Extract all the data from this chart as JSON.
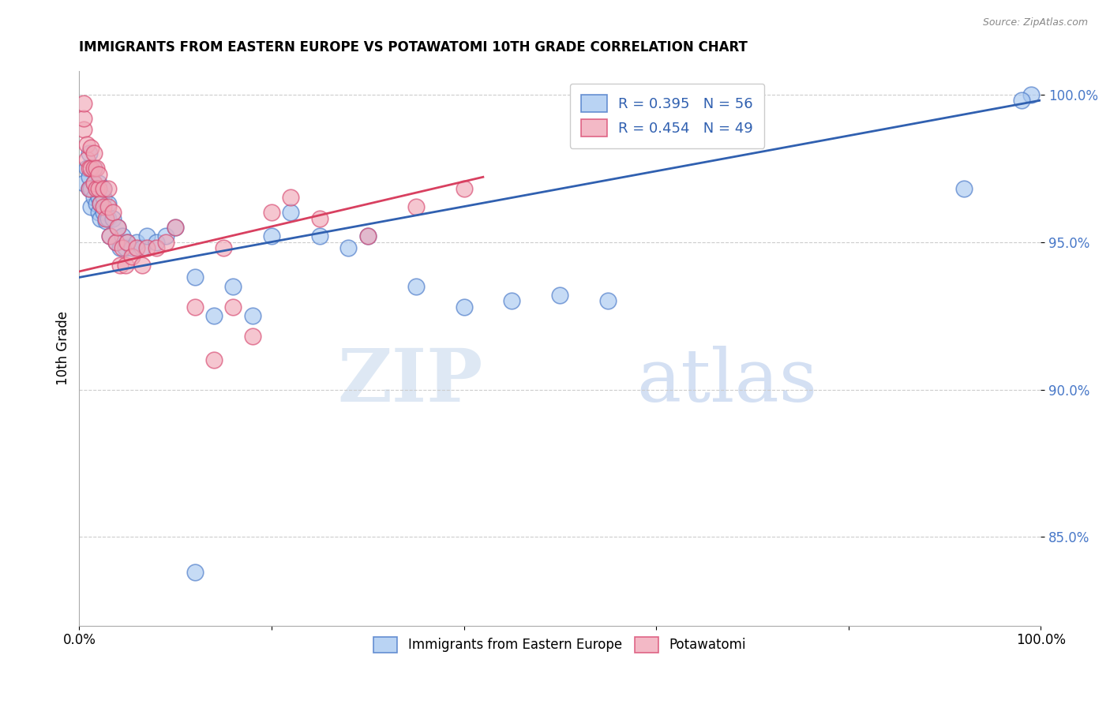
{
  "title": "IMMIGRANTS FROM EASTERN EUROPE VS POTAWATOMI 10TH GRADE CORRELATION CHART",
  "source_text": "Source: ZipAtlas.com",
  "ylabel": "10th Grade",
  "xlim": [
    0.0,
    1.0
  ],
  "ylim": [
    0.82,
    1.008
  ],
  "yticks": [
    0.85,
    0.9,
    0.95,
    1.0
  ],
  "ytick_labels": [
    "85.0%",
    "90.0%",
    "95.0%",
    "100.0%"
  ],
  "xticks": [
    0.0,
    0.2,
    0.4,
    0.6,
    0.8,
    1.0
  ],
  "xtick_labels": [
    "0.0%",
    "",
    "",
    "",
    "",
    "100.0%"
  ],
  "blue_color": "#A8C8F0",
  "pink_color": "#F0A8B8",
  "blue_edge_color": "#4878C8",
  "pink_edge_color": "#D84870",
  "blue_line_color": "#3060B0",
  "pink_line_color": "#D84060",
  "legend_text_color": "#3060B0",
  "ytick_color": "#4878C8",
  "watermark_zip": "ZIP",
  "watermark_atlas": "atlas",
  "blue_scatter_x": [
    0.005,
    0.008,
    0.01,
    0.01,
    0.01,
    0.012,
    0.012,
    0.015,
    0.015,
    0.015,
    0.018,
    0.018,
    0.02,
    0.02,
    0.02,
    0.022,
    0.022,
    0.025,
    0.025,
    0.025,
    0.028,
    0.03,
    0.03,
    0.032,
    0.035,
    0.038,
    0.04,
    0.042,
    0.045,
    0.048,
    0.05,
    0.055,
    0.06,
    0.065,
    0.07,
    0.08,
    0.09,
    0.1,
    0.12,
    0.14,
    0.16,
    0.18,
    0.2,
    0.22,
    0.25,
    0.28,
    0.3,
    0.35,
    0.4,
    0.45,
    0.5,
    0.55,
    0.12,
    0.99,
    0.98,
    0.92
  ],
  "blue_scatter_y": [
    0.97,
    0.975,
    0.968,
    0.972,
    0.98,
    0.962,
    0.968,
    0.965,
    0.97,
    0.975,
    0.963,
    0.968,
    0.96,
    0.965,
    0.97,
    0.958,
    0.963,
    0.96,
    0.965,
    0.968,
    0.957,
    0.958,
    0.963,
    0.952,
    0.958,
    0.95,
    0.955,
    0.948,
    0.952,
    0.948,
    0.95,
    0.948,
    0.95,
    0.948,
    0.952,
    0.95,
    0.952,
    0.955,
    0.938,
    0.925,
    0.935,
    0.925,
    0.952,
    0.96,
    0.952,
    0.948,
    0.952,
    0.935,
    0.928,
    0.93,
    0.932,
    0.93,
    0.838,
    1.0,
    0.998,
    0.968
  ],
  "pink_scatter_x": [
    0.005,
    0.005,
    0.005,
    0.008,
    0.008,
    0.01,
    0.01,
    0.012,
    0.012,
    0.015,
    0.015,
    0.015,
    0.018,
    0.018,
    0.02,
    0.02,
    0.022,
    0.025,
    0.025,
    0.028,
    0.03,
    0.03,
    0.032,
    0.035,
    0.038,
    0.04,
    0.042,
    0.045,
    0.048,
    0.05,
    0.055,
    0.06,
    0.065,
    0.07,
    0.08,
    0.09,
    0.1,
    0.12,
    0.14,
    0.15,
    0.16,
    0.18,
    0.2,
    0.22,
    0.25,
    0.3,
    0.35,
    0.4
  ],
  "pink_scatter_y": [
    0.988,
    0.992,
    0.997,
    0.978,
    0.983,
    0.968,
    0.975,
    0.975,
    0.982,
    0.97,
    0.975,
    0.98,
    0.968,
    0.975,
    0.968,
    0.973,
    0.963,
    0.962,
    0.968,
    0.958,
    0.962,
    0.968,
    0.952,
    0.96,
    0.95,
    0.955,
    0.942,
    0.948,
    0.942,
    0.95,
    0.945,
    0.948,
    0.942,
    0.948,
    0.948,
    0.95,
    0.955,
    0.928,
    0.91,
    0.948,
    0.928,
    0.918,
    0.96,
    0.965,
    0.958,
    0.952,
    0.962,
    0.968
  ],
  "blue_trend_x0": 0.0,
  "blue_trend_x1": 1.0,
  "blue_trend_y0": 0.938,
  "blue_trend_y1": 0.998,
  "pink_trend_x0": 0.0,
  "pink_trend_x1": 0.42,
  "pink_trend_y0": 0.94,
  "pink_trend_y1": 0.972
}
